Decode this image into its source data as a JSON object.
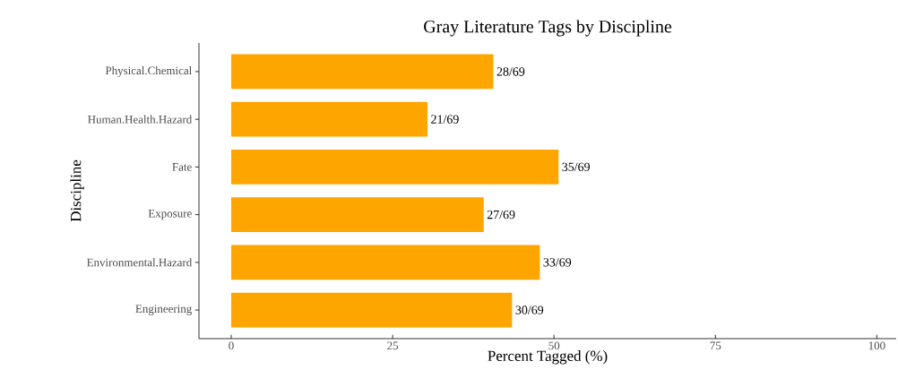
{
  "chart_data": {
    "type": "bar",
    "orientation": "horizontal",
    "title": "Gray Literature Tags by Discipline",
    "xlabel": "Percent Tagged (%)",
    "ylabel": "Discipline",
    "categories": [
      "Physical.Chemical",
      "Human.Health.Hazard",
      "Fate",
      "Exposure",
      "Environmental.Hazard",
      "Engineering"
    ],
    "values": [
      40.6,
      30.4,
      50.7,
      39.1,
      47.8,
      43.5
    ],
    "value_labels": [
      "28/69",
      "21/69",
      "35/69",
      "27/69",
      "33/69",
      "30/69"
    ],
    "color": "#ffa500",
    "xlim": [
      -5,
      103
    ],
    "xticks": [
      0,
      25,
      50,
      75,
      100
    ],
    "grid": false
  }
}
